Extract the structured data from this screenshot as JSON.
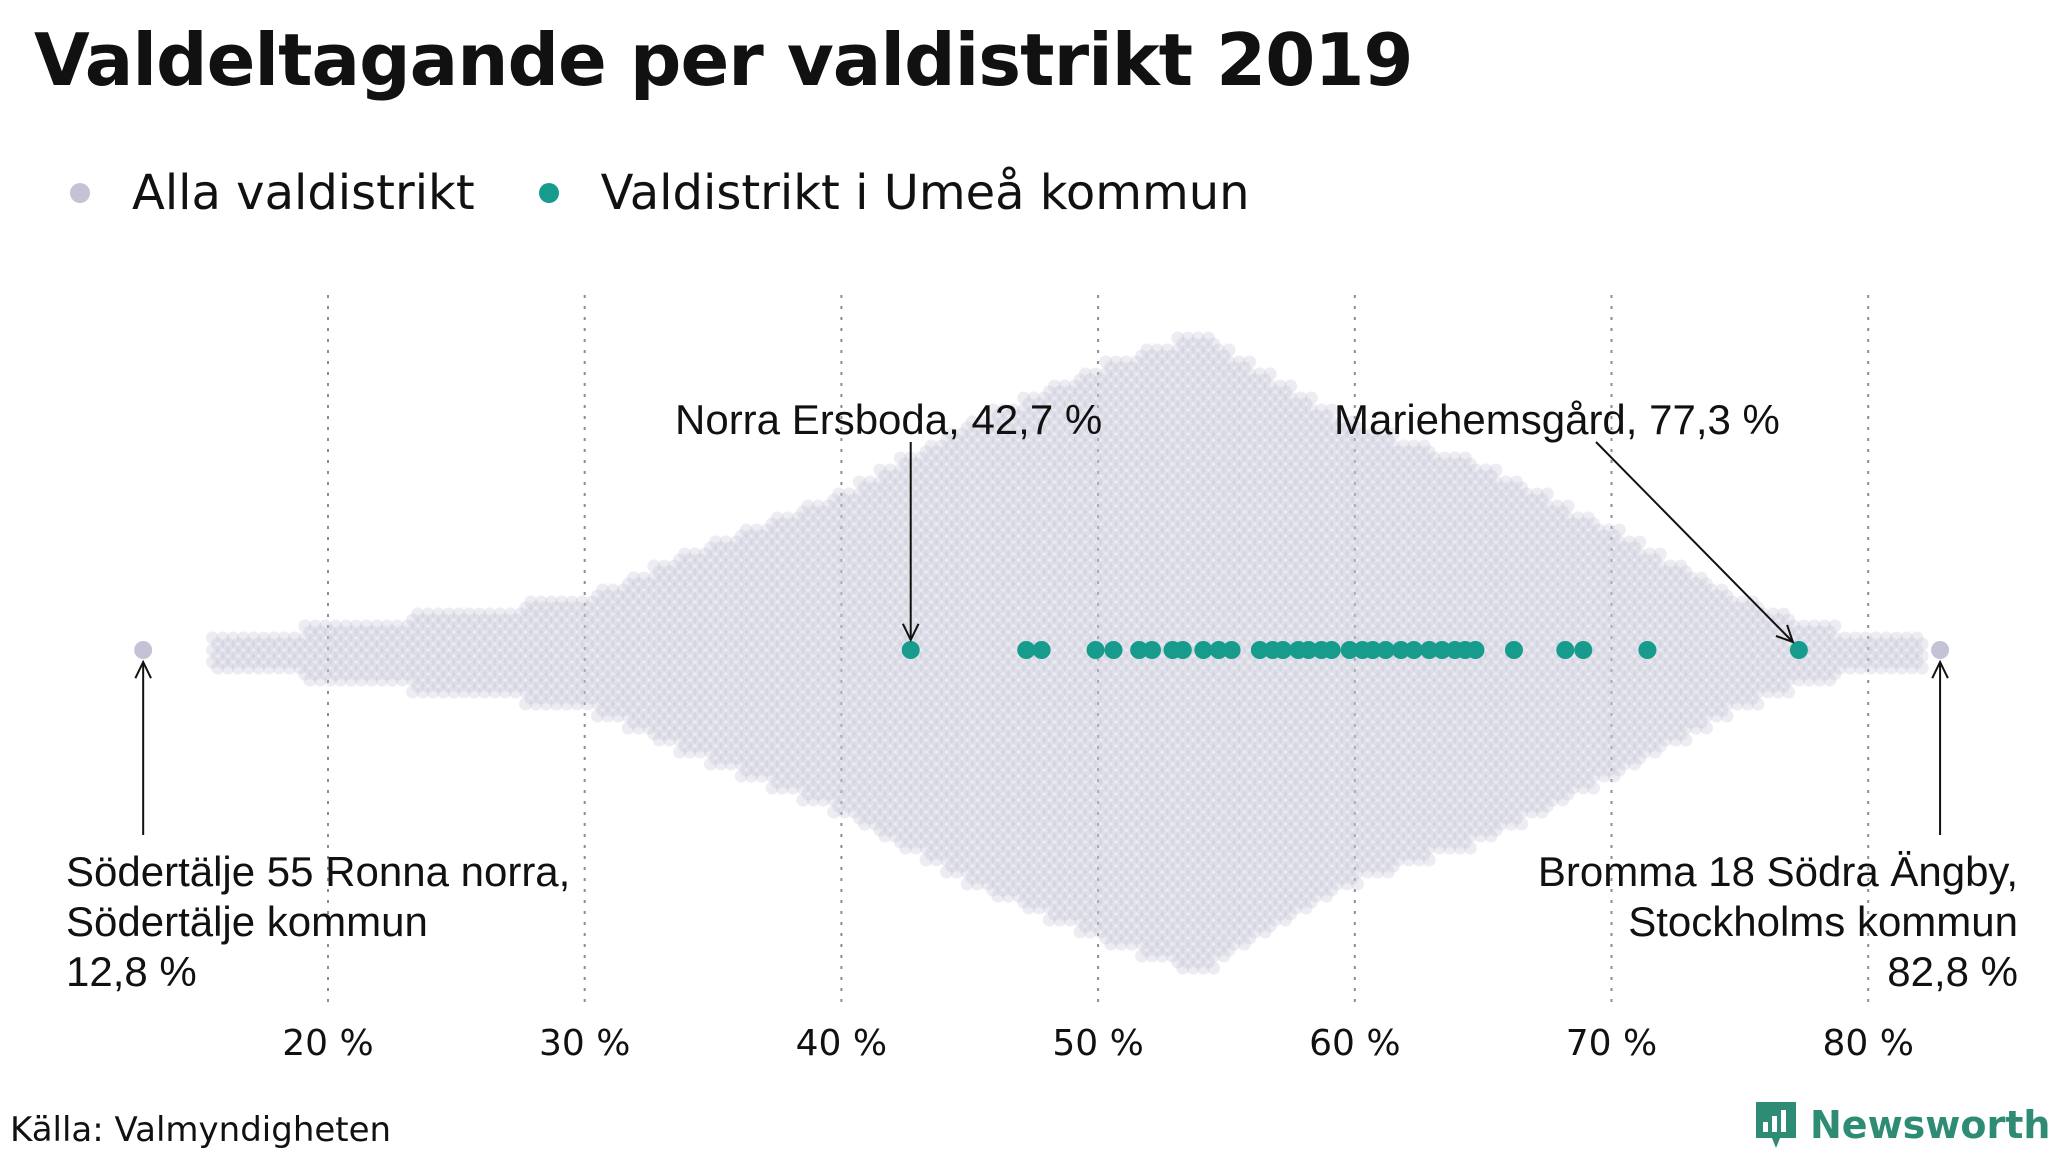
{
  "title": "Valdeltagande per valdistrikt 2019",
  "legend": [
    {
      "label": "Alla valdistrikt",
      "color": "#c4c3d6"
    },
    {
      "label": "Valdistrikt i Umeå kommun",
      "color": "#169b8c"
    }
  ],
  "source": "Källa: Valmyndigheten",
  "brand": "Newsworthy",
  "colors": {
    "all": "#c4c3d6",
    "umea": "#169b8c",
    "grid": "#8e8e8e",
    "text": "#111111"
  },
  "chart_data": {
    "type": "scatter",
    "title": "Valdeltagande per valdistrikt 2019",
    "x_axis": {
      "ticks": [
        20,
        30,
        40,
        50,
        60,
        70,
        80
      ],
      "tick_labels": [
        "20 %",
        "30 %",
        "40 %",
        "50 %",
        "60 %",
        "70 %",
        "80 %"
      ],
      "range": [
        12,
        84
      ],
      "grid": true
    },
    "legend_position": "top-left",
    "series": [
      {
        "name": "Alla valdistrikt",
        "color": "#c4c3d6",
        "distribution": "beeswarm",
        "min": 12.8,
        "max": 82.8,
        "density_profile": [
          [
            15.5,
            1
          ],
          [
            20,
            3
          ],
          [
            25,
            5
          ],
          [
            30,
            7
          ],
          [
            35,
            15
          ],
          [
            40,
            22
          ],
          [
            45,
            32
          ],
          [
            50,
            40
          ],
          [
            54,
            45
          ],
          [
            57,
            38
          ],
          [
            60,
            32
          ],
          [
            65,
            26
          ],
          [
            70,
            17
          ],
          [
            75,
            7
          ],
          [
            78,
            3
          ],
          [
            82,
            1
          ]
        ],
        "extremes": [
          {
            "name": "Södertälje 55 Ronna norra,",
            "name2": "Södertälje kommun",
            "value": 12.8,
            "label": "12,8 %"
          },
          {
            "name": "Bromma 18 Södra Ängby,",
            "name2": "Stockholms kommun",
            "value": 82.8,
            "label": "82,8 %"
          }
        ]
      },
      {
        "name": "Valdistrikt i Umeå kommun",
        "color": "#169b8c",
        "values": [
          42.7,
          47.2,
          47.8,
          49.9,
          50.6,
          51.6,
          52.1,
          52.9,
          53.3,
          54.1,
          54.7,
          55.2,
          56.3,
          56.8,
          57.2,
          57.8,
          58.2,
          58.7,
          59.1,
          59.8,
          60.3,
          60.7,
          61.2,
          61.8,
          62.3,
          62.9,
          63.4,
          63.9,
          64.3,
          64.7,
          66.2,
          68.2,
          68.9,
          71.4,
          77.3
        ],
        "annotations": [
          {
            "text": "Norra Ersboda, 42,7 %",
            "value": 42.7
          },
          {
            "text": "Mariehemsgård, 77,3 %",
            "value": 77.3
          }
        ]
      }
    ]
  }
}
